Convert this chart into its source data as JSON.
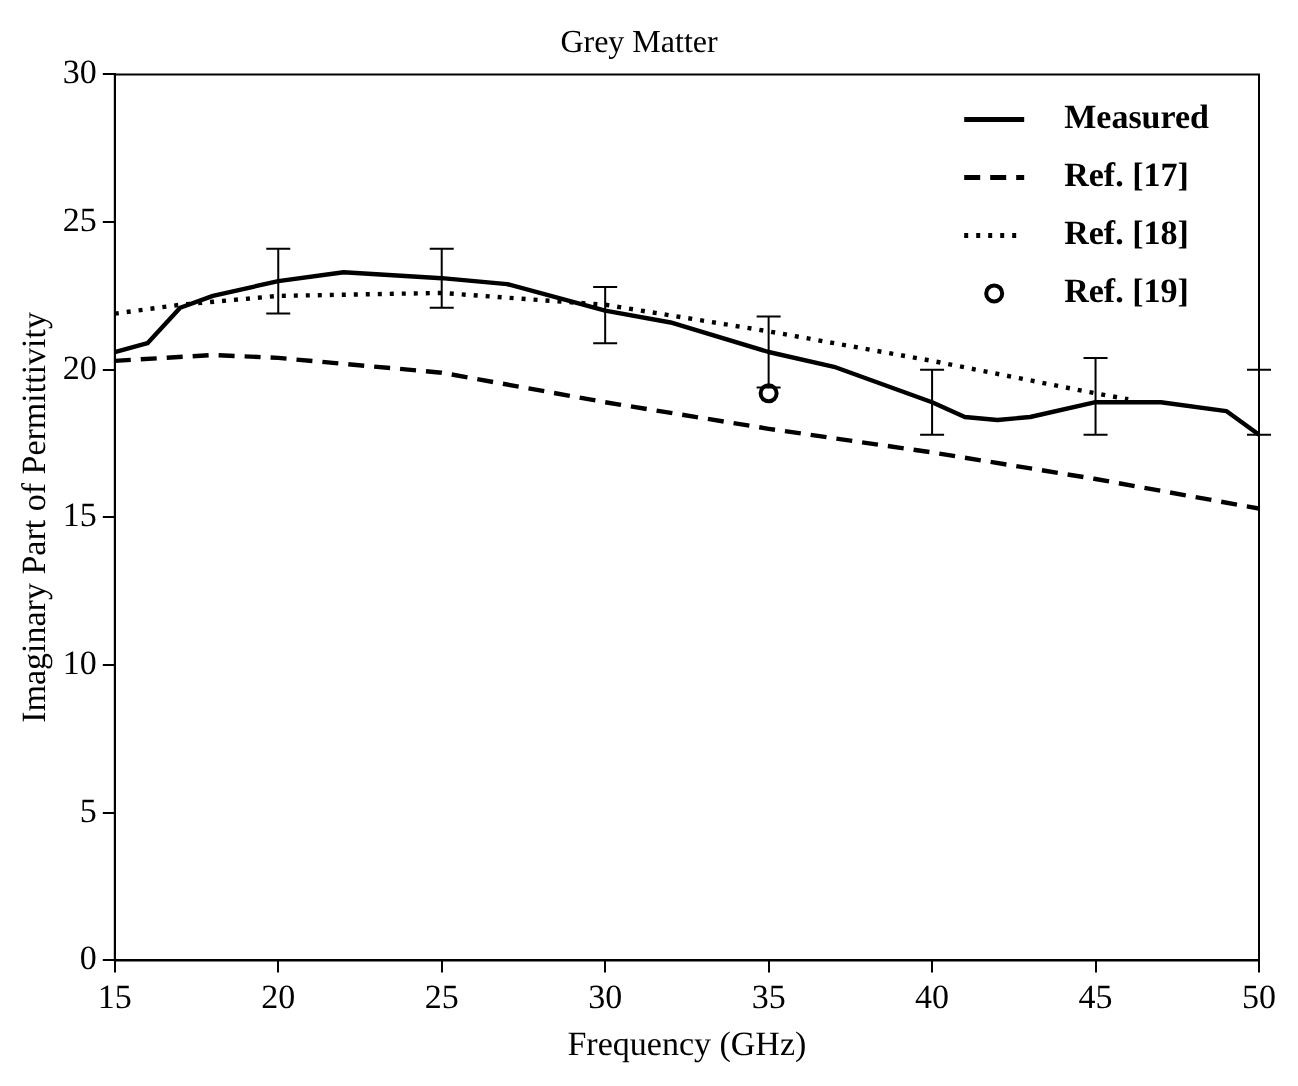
{
  "chart_data": {
    "type": "line",
    "title": "Grey Matter",
    "xlabel": "Frequency (GHz)",
    "ylabel": "Imaginary Part of Permittivity",
    "xlim": [
      15,
      50
    ],
    "xticks": [
      15,
      20,
      25,
      30,
      35,
      40,
      45,
      50
    ],
    "ylim": [
      0,
      30
    ],
    "yticks": [
      0,
      5,
      10,
      15,
      20,
      25,
      30
    ],
    "grid": false,
    "legend": "top right",
    "marker": "none",
    "series": [
      {
        "name": "Measured",
        "color": "#000000",
        "line_style": "solid",
        "x": [
          15,
          16,
          17,
          18,
          20,
          22,
          25,
          27,
          30,
          32,
          35,
          37,
          40,
          41,
          42,
          43,
          45,
          47,
          49,
          50
        ],
        "values": [
          20.6,
          20.9,
          22.1,
          22.5,
          23.0,
          23.3,
          23.1,
          22.9,
          22.0,
          21.6,
          20.6,
          20.1,
          18.9,
          18.4,
          18.3,
          18.4,
          18.9,
          18.9,
          18.6,
          17.8
        ],
        "errors": [
          null,
          null,
          null,
          null,
          [
            21.9,
            24.1
          ],
          null,
          [
            22.1,
            24.1
          ],
          null,
          [
            20.9,
            22.8
          ],
          null,
          [
            19.4,
            21.8
          ],
          null,
          [
            17.8,
            20.0
          ],
          null,
          null,
          null,
          [
            17.8,
            20.4
          ],
          null,
          null,
          [
            17.8,
            20.0
          ]
        ]
      },
      {
        "name": "Ref. [17]",
        "color": "#000000",
        "line_style": "dashed",
        "x": [
          15,
          18,
          20,
          25,
          30,
          35,
          40,
          45,
          50
        ],
        "values": [
          20.3,
          20.5,
          20.4,
          19.9,
          18.9,
          18.0,
          17.2,
          16.3,
          15.3
        ]
      },
      {
        "name": "Ref. [18]",
        "color": "#000000",
        "line_style": "dotted",
        "x": [
          15,
          17,
          20,
          25,
          30,
          35,
          40,
          45,
          46
        ],
        "values": [
          21.9,
          22.2,
          22.5,
          22.6,
          22.2,
          21.3,
          20.3,
          19.2,
          19.0
        ]
      },
      {
        "name": "Ref. [19]",
        "color": "#000000",
        "type": "scatter",
        "marker": "circle",
        "x": [
          35
        ],
        "values": [
          19.2
        ]
      }
    ]
  }
}
